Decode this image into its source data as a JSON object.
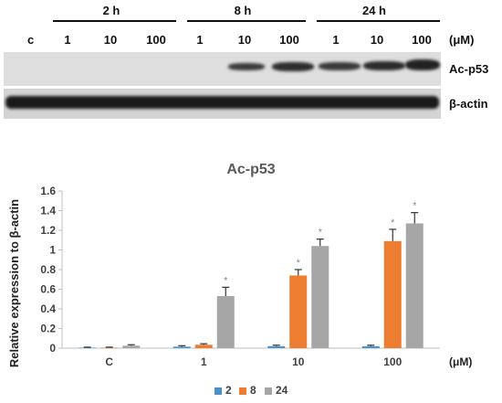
{
  "blot": {
    "control_label": "c",
    "unit_label": "(μM)",
    "timepoints": [
      {
        "label": "2 h",
        "concentrations": [
          "1",
          "10",
          "100"
        ]
      },
      {
        "label": "8 h",
        "concentrations": [
          "1",
          "10",
          "100"
        ]
      },
      {
        "label": "24 h",
        "concentrations": [
          "1",
          "10",
          "100"
        ]
      }
    ],
    "rows": [
      {
        "label": "Ac-p53"
      },
      {
        "label": "β-actin"
      }
    ]
  },
  "chart_data": {
    "type": "bar",
    "title": "Ac-p53",
    "xlabel": "(μM)",
    "ylabel": "Relative expression to β-actin",
    "ylim": [
      0,
      1.6
    ],
    "yticks": [
      "0",
      "0.2",
      "0.4",
      "0.6",
      "0.8",
      "1",
      "1.2",
      "1.4",
      "1.6"
    ],
    "categories": [
      "C",
      "1",
      "10",
      "100"
    ],
    "series": [
      {
        "name": "2",
        "color": "#4a90c9",
        "values": [
          0.005,
          0.015,
          0.02,
          0.02
        ],
        "errors": [
          0.005,
          0.01,
          0.01,
          0.01
        ],
        "significant": [
          false,
          false,
          false,
          false
        ]
      },
      {
        "name": "8",
        "color": "#ed7d31",
        "values": [
          0.005,
          0.035,
          0.74,
          1.09
        ],
        "errors": [
          0.005,
          0.01,
          0.06,
          0.12
        ],
        "significant": [
          false,
          false,
          true,
          true
        ]
      },
      {
        "name": "24",
        "color": "#a6a6a6",
        "values": [
          0.025,
          0.53,
          1.04,
          1.27
        ],
        "errors": [
          0.01,
          0.09,
          0.07,
          0.11
        ],
        "significant": [
          false,
          true,
          true,
          true
        ]
      }
    ],
    "significance_marker": "*",
    "grid": false,
    "legend_position": "bottom"
  }
}
